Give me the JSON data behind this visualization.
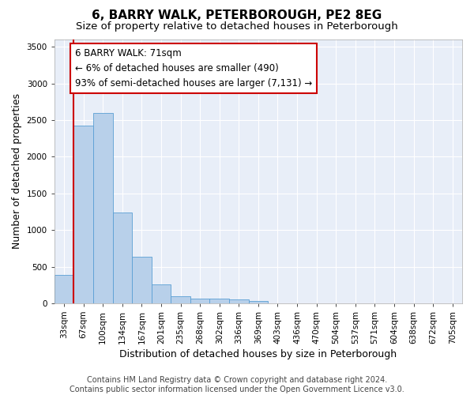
{
  "title": "6, BARRY WALK, PETERBOROUGH, PE2 8EG",
  "subtitle": "Size of property relative to detached houses in Peterborough",
  "xlabel": "Distribution of detached houses by size in Peterborough",
  "ylabel": "Number of detached properties",
  "bar_color": "#b8d0ea",
  "bar_edge_color": "#5a9fd4",
  "background_color": "#e8eef8",
  "grid_color": "#ffffff",
  "categories": [
    "33sqm",
    "67sqm",
    "100sqm",
    "134sqm",
    "167sqm",
    "201sqm",
    "235sqm",
    "268sqm",
    "302sqm",
    "336sqm",
    "369sqm",
    "403sqm",
    "436sqm",
    "470sqm",
    "504sqm",
    "537sqm",
    "571sqm",
    "604sqm",
    "638sqm",
    "672sqm",
    "705sqm"
  ],
  "values": [
    390,
    2420,
    2600,
    1240,
    640,
    255,
    100,
    65,
    60,
    50,
    35,
    0,
    0,
    0,
    0,
    0,
    0,
    0,
    0,
    0,
    0
  ],
  "ylim": [
    0,
    3600
  ],
  "yticks": [
    0,
    500,
    1000,
    1500,
    2000,
    2500,
    3000,
    3500
  ],
  "annotation_text": "6 BARRY WALK: 71sqm\n← 6% of detached houses are smaller (490)\n93% of semi-detached houses are larger (7,131) →",
  "annotation_box_color": "#ffffff",
  "annotation_box_edge": "#cc0000",
  "red_line_color": "#cc0000",
  "footnote": "Contains HM Land Registry data © Crown copyright and database right 2024.\nContains public sector information licensed under the Open Government Licence v3.0.",
  "title_fontsize": 11,
  "subtitle_fontsize": 9.5,
  "xlabel_fontsize": 9,
  "ylabel_fontsize": 9,
  "annotation_fontsize": 8.5,
  "tick_fontsize": 7.5,
  "footnote_fontsize": 7
}
